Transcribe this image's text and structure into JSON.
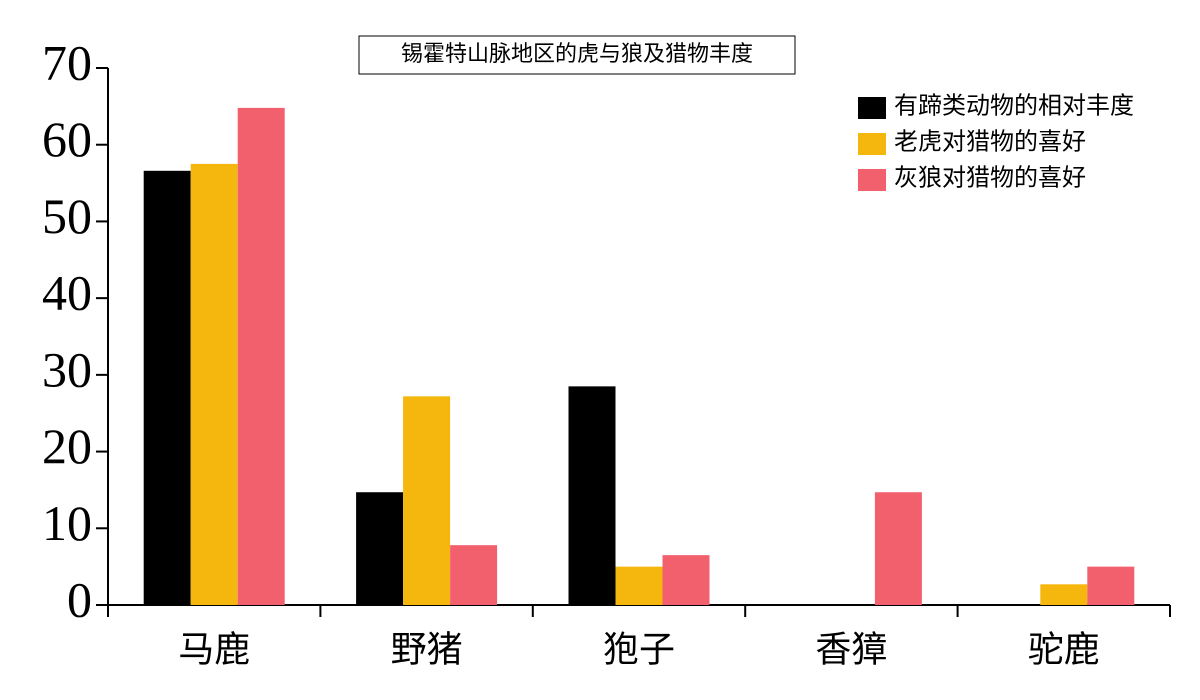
{
  "chart_data": {
    "type": "bar",
    "title": "锡霍特山脉地区的虎与狼及猎物丰度",
    "categories": [
      "马鹿",
      "野猪",
      "狍子",
      "香獐",
      "驼鹿"
    ],
    "series": [
      {
        "name": "有蹄类动物的相对丰度",
        "color": "#000000",
        "values": [
          56.6,
          14.7,
          28.5,
          0,
          0
        ]
      },
      {
        "name": "老虎对猎物的喜好",
        "color": "#f5b70d",
        "values": [
          57.5,
          27.2,
          5.0,
          0,
          2.7
        ]
      },
      {
        "name": "灰狼对猎物的喜好",
        "color": "#f2606e",
        "values": [
          64.8,
          7.8,
          6.5,
          14.7,
          5.0
        ]
      }
    ],
    "ylim": [
      0,
      70
    ],
    "yticks": [
      0,
      10,
      20,
      30,
      40,
      50,
      60,
      70
    ],
    "grid": false,
    "legend": "top-right"
  }
}
